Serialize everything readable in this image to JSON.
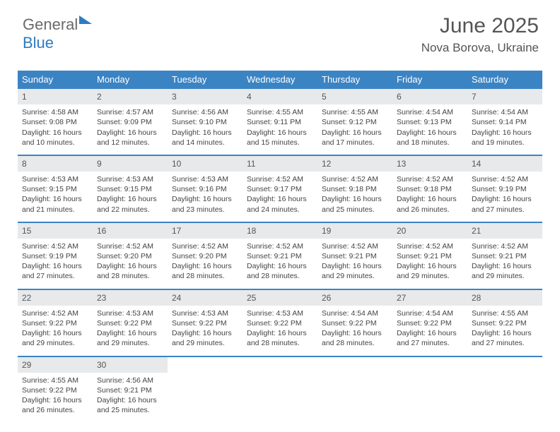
{
  "logo": {
    "part1": "General",
    "part2": "Blue"
  },
  "header": {
    "title": "June 2025",
    "location": "Nova Borova, Ukraine"
  },
  "colors": {
    "header_bg": "#3b84c4",
    "header_text": "#ffffff",
    "daynum_bg": "#e7e9eb",
    "border": "#3b84c4",
    "body_text": "#444444",
    "title_text": "#555555"
  },
  "weekdays": [
    "Sunday",
    "Monday",
    "Tuesday",
    "Wednesday",
    "Thursday",
    "Friday",
    "Saturday"
  ],
  "weeks": [
    [
      {
        "n": "1",
        "sr": "Sunrise: 4:58 AM",
        "ss": "Sunset: 9:08 PM",
        "d1": "Daylight: 16 hours",
        "d2": "and 10 minutes."
      },
      {
        "n": "2",
        "sr": "Sunrise: 4:57 AM",
        "ss": "Sunset: 9:09 PM",
        "d1": "Daylight: 16 hours",
        "d2": "and 12 minutes."
      },
      {
        "n": "3",
        "sr": "Sunrise: 4:56 AM",
        "ss": "Sunset: 9:10 PM",
        "d1": "Daylight: 16 hours",
        "d2": "and 14 minutes."
      },
      {
        "n": "4",
        "sr": "Sunrise: 4:55 AM",
        "ss": "Sunset: 9:11 PM",
        "d1": "Daylight: 16 hours",
        "d2": "and 15 minutes."
      },
      {
        "n": "5",
        "sr": "Sunrise: 4:55 AM",
        "ss": "Sunset: 9:12 PM",
        "d1": "Daylight: 16 hours",
        "d2": "and 17 minutes."
      },
      {
        "n": "6",
        "sr": "Sunrise: 4:54 AM",
        "ss": "Sunset: 9:13 PM",
        "d1": "Daylight: 16 hours",
        "d2": "and 18 minutes."
      },
      {
        "n": "7",
        "sr": "Sunrise: 4:54 AM",
        "ss": "Sunset: 9:14 PM",
        "d1": "Daylight: 16 hours",
        "d2": "and 19 minutes."
      }
    ],
    [
      {
        "n": "8",
        "sr": "Sunrise: 4:53 AM",
        "ss": "Sunset: 9:15 PM",
        "d1": "Daylight: 16 hours",
        "d2": "and 21 minutes."
      },
      {
        "n": "9",
        "sr": "Sunrise: 4:53 AM",
        "ss": "Sunset: 9:15 PM",
        "d1": "Daylight: 16 hours",
        "d2": "and 22 minutes."
      },
      {
        "n": "10",
        "sr": "Sunrise: 4:53 AM",
        "ss": "Sunset: 9:16 PM",
        "d1": "Daylight: 16 hours",
        "d2": "and 23 minutes."
      },
      {
        "n": "11",
        "sr": "Sunrise: 4:52 AM",
        "ss": "Sunset: 9:17 PM",
        "d1": "Daylight: 16 hours",
        "d2": "and 24 minutes."
      },
      {
        "n": "12",
        "sr": "Sunrise: 4:52 AM",
        "ss": "Sunset: 9:18 PM",
        "d1": "Daylight: 16 hours",
        "d2": "and 25 minutes."
      },
      {
        "n": "13",
        "sr": "Sunrise: 4:52 AM",
        "ss": "Sunset: 9:18 PM",
        "d1": "Daylight: 16 hours",
        "d2": "and 26 minutes."
      },
      {
        "n": "14",
        "sr": "Sunrise: 4:52 AM",
        "ss": "Sunset: 9:19 PM",
        "d1": "Daylight: 16 hours",
        "d2": "and 27 minutes."
      }
    ],
    [
      {
        "n": "15",
        "sr": "Sunrise: 4:52 AM",
        "ss": "Sunset: 9:19 PM",
        "d1": "Daylight: 16 hours",
        "d2": "and 27 minutes."
      },
      {
        "n": "16",
        "sr": "Sunrise: 4:52 AM",
        "ss": "Sunset: 9:20 PM",
        "d1": "Daylight: 16 hours",
        "d2": "and 28 minutes."
      },
      {
        "n": "17",
        "sr": "Sunrise: 4:52 AM",
        "ss": "Sunset: 9:20 PM",
        "d1": "Daylight: 16 hours",
        "d2": "and 28 minutes."
      },
      {
        "n": "18",
        "sr": "Sunrise: 4:52 AM",
        "ss": "Sunset: 9:21 PM",
        "d1": "Daylight: 16 hours",
        "d2": "and 28 minutes."
      },
      {
        "n": "19",
        "sr": "Sunrise: 4:52 AM",
        "ss": "Sunset: 9:21 PM",
        "d1": "Daylight: 16 hours",
        "d2": "and 29 minutes."
      },
      {
        "n": "20",
        "sr": "Sunrise: 4:52 AM",
        "ss": "Sunset: 9:21 PM",
        "d1": "Daylight: 16 hours",
        "d2": "and 29 minutes."
      },
      {
        "n": "21",
        "sr": "Sunrise: 4:52 AM",
        "ss": "Sunset: 9:21 PM",
        "d1": "Daylight: 16 hours",
        "d2": "and 29 minutes."
      }
    ],
    [
      {
        "n": "22",
        "sr": "Sunrise: 4:52 AM",
        "ss": "Sunset: 9:22 PM",
        "d1": "Daylight: 16 hours",
        "d2": "and 29 minutes."
      },
      {
        "n": "23",
        "sr": "Sunrise: 4:53 AM",
        "ss": "Sunset: 9:22 PM",
        "d1": "Daylight: 16 hours",
        "d2": "and 29 minutes."
      },
      {
        "n": "24",
        "sr": "Sunrise: 4:53 AM",
        "ss": "Sunset: 9:22 PM",
        "d1": "Daylight: 16 hours",
        "d2": "and 29 minutes."
      },
      {
        "n": "25",
        "sr": "Sunrise: 4:53 AM",
        "ss": "Sunset: 9:22 PM",
        "d1": "Daylight: 16 hours",
        "d2": "and 28 minutes."
      },
      {
        "n": "26",
        "sr": "Sunrise: 4:54 AM",
        "ss": "Sunset: 9:22 PM",
        "d1": "Daylight: 16 hours",
        "d2": "and 28 minutes."
      },
      {
        "n": "27",
        "sr": "Sunrise: 4:54 AM",
        "ss": "Sunset: 9:22 PM",
        "d1": "Daylight: 16 hours",
        "d2": "and 27 minutes."
      },
      {
        "n": "28",
        "sr": "Sunrise: 4:55 AM",
        "ss": "Sunset: 9:22 PM",
        "d1": "Daylight: 16 hours",
        "d2": "and 27 minutes."
      }
    ],
    [
      {
        "n": "29",
        "sr": "Sunrise: 4:55 AM",
        "ss": "Sunset: 9:22 PM",
        "d1": "Daylight: 16 hours",
        "d2": "and 26 minutes."
      },
      {
        "n": "30",
        "sr": "Sunrise: 4:56 AM",
        "ss": "Sunset: 9:21 PM",
        "d1": "Daylight: 16 hours",
        "d2": "and 25 minutes."
      },
      null,
      null,
      null,
      null,
      null
    ]
  ]
}
